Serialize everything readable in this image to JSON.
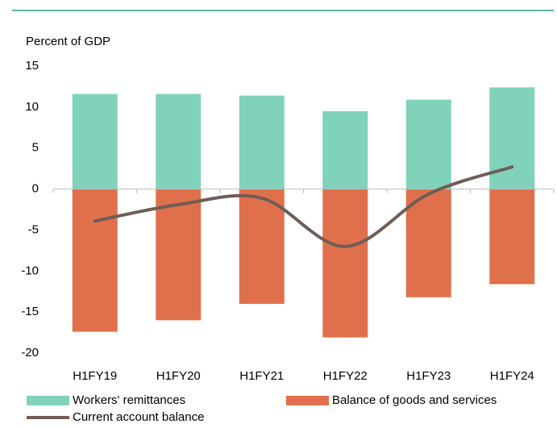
{
  "chart_data": {
    "type": "bar",
    "y_axis_label": "Percent of GDP",
    "categories": [
      "H1FY19",
      "H1FY20",
      "H1FY21",
      "H1FY22",
      "H1FY23",
      "H1FY24"
    ],
    "series": [
      {
        "name": "Workers' remittances",
        "color": "#80d2bb",
        "values": [
          11.6,
          11.6,
          11.4,
          9.5,
          10.9,
          12.4
        ]
      },
      {
        "name": "Balance of goods and services",
        "color": "#e0704b",
        "values": [
          -17.4,
          -16.0,
          -14.0,
          -18.1,
          -13.2,
          -11.6
        ]
      },
      {
        "name": "Current account balance",
        "color": "#6e5d58",
        "type": "line",
        "smooth": true,
        "values": [
          -3.9,
          -1.9,
          -1.1,
          -7.0,
          -0.6,
          2.7
        ]
      }
    ],
    "ylim": [
      -20,
      15
    ],
    "yticks": [
      -20,
      -15,
      -10,
      -5,
      0,
      5,
      10,
      15
    ],
    "grid": false
  }
}
